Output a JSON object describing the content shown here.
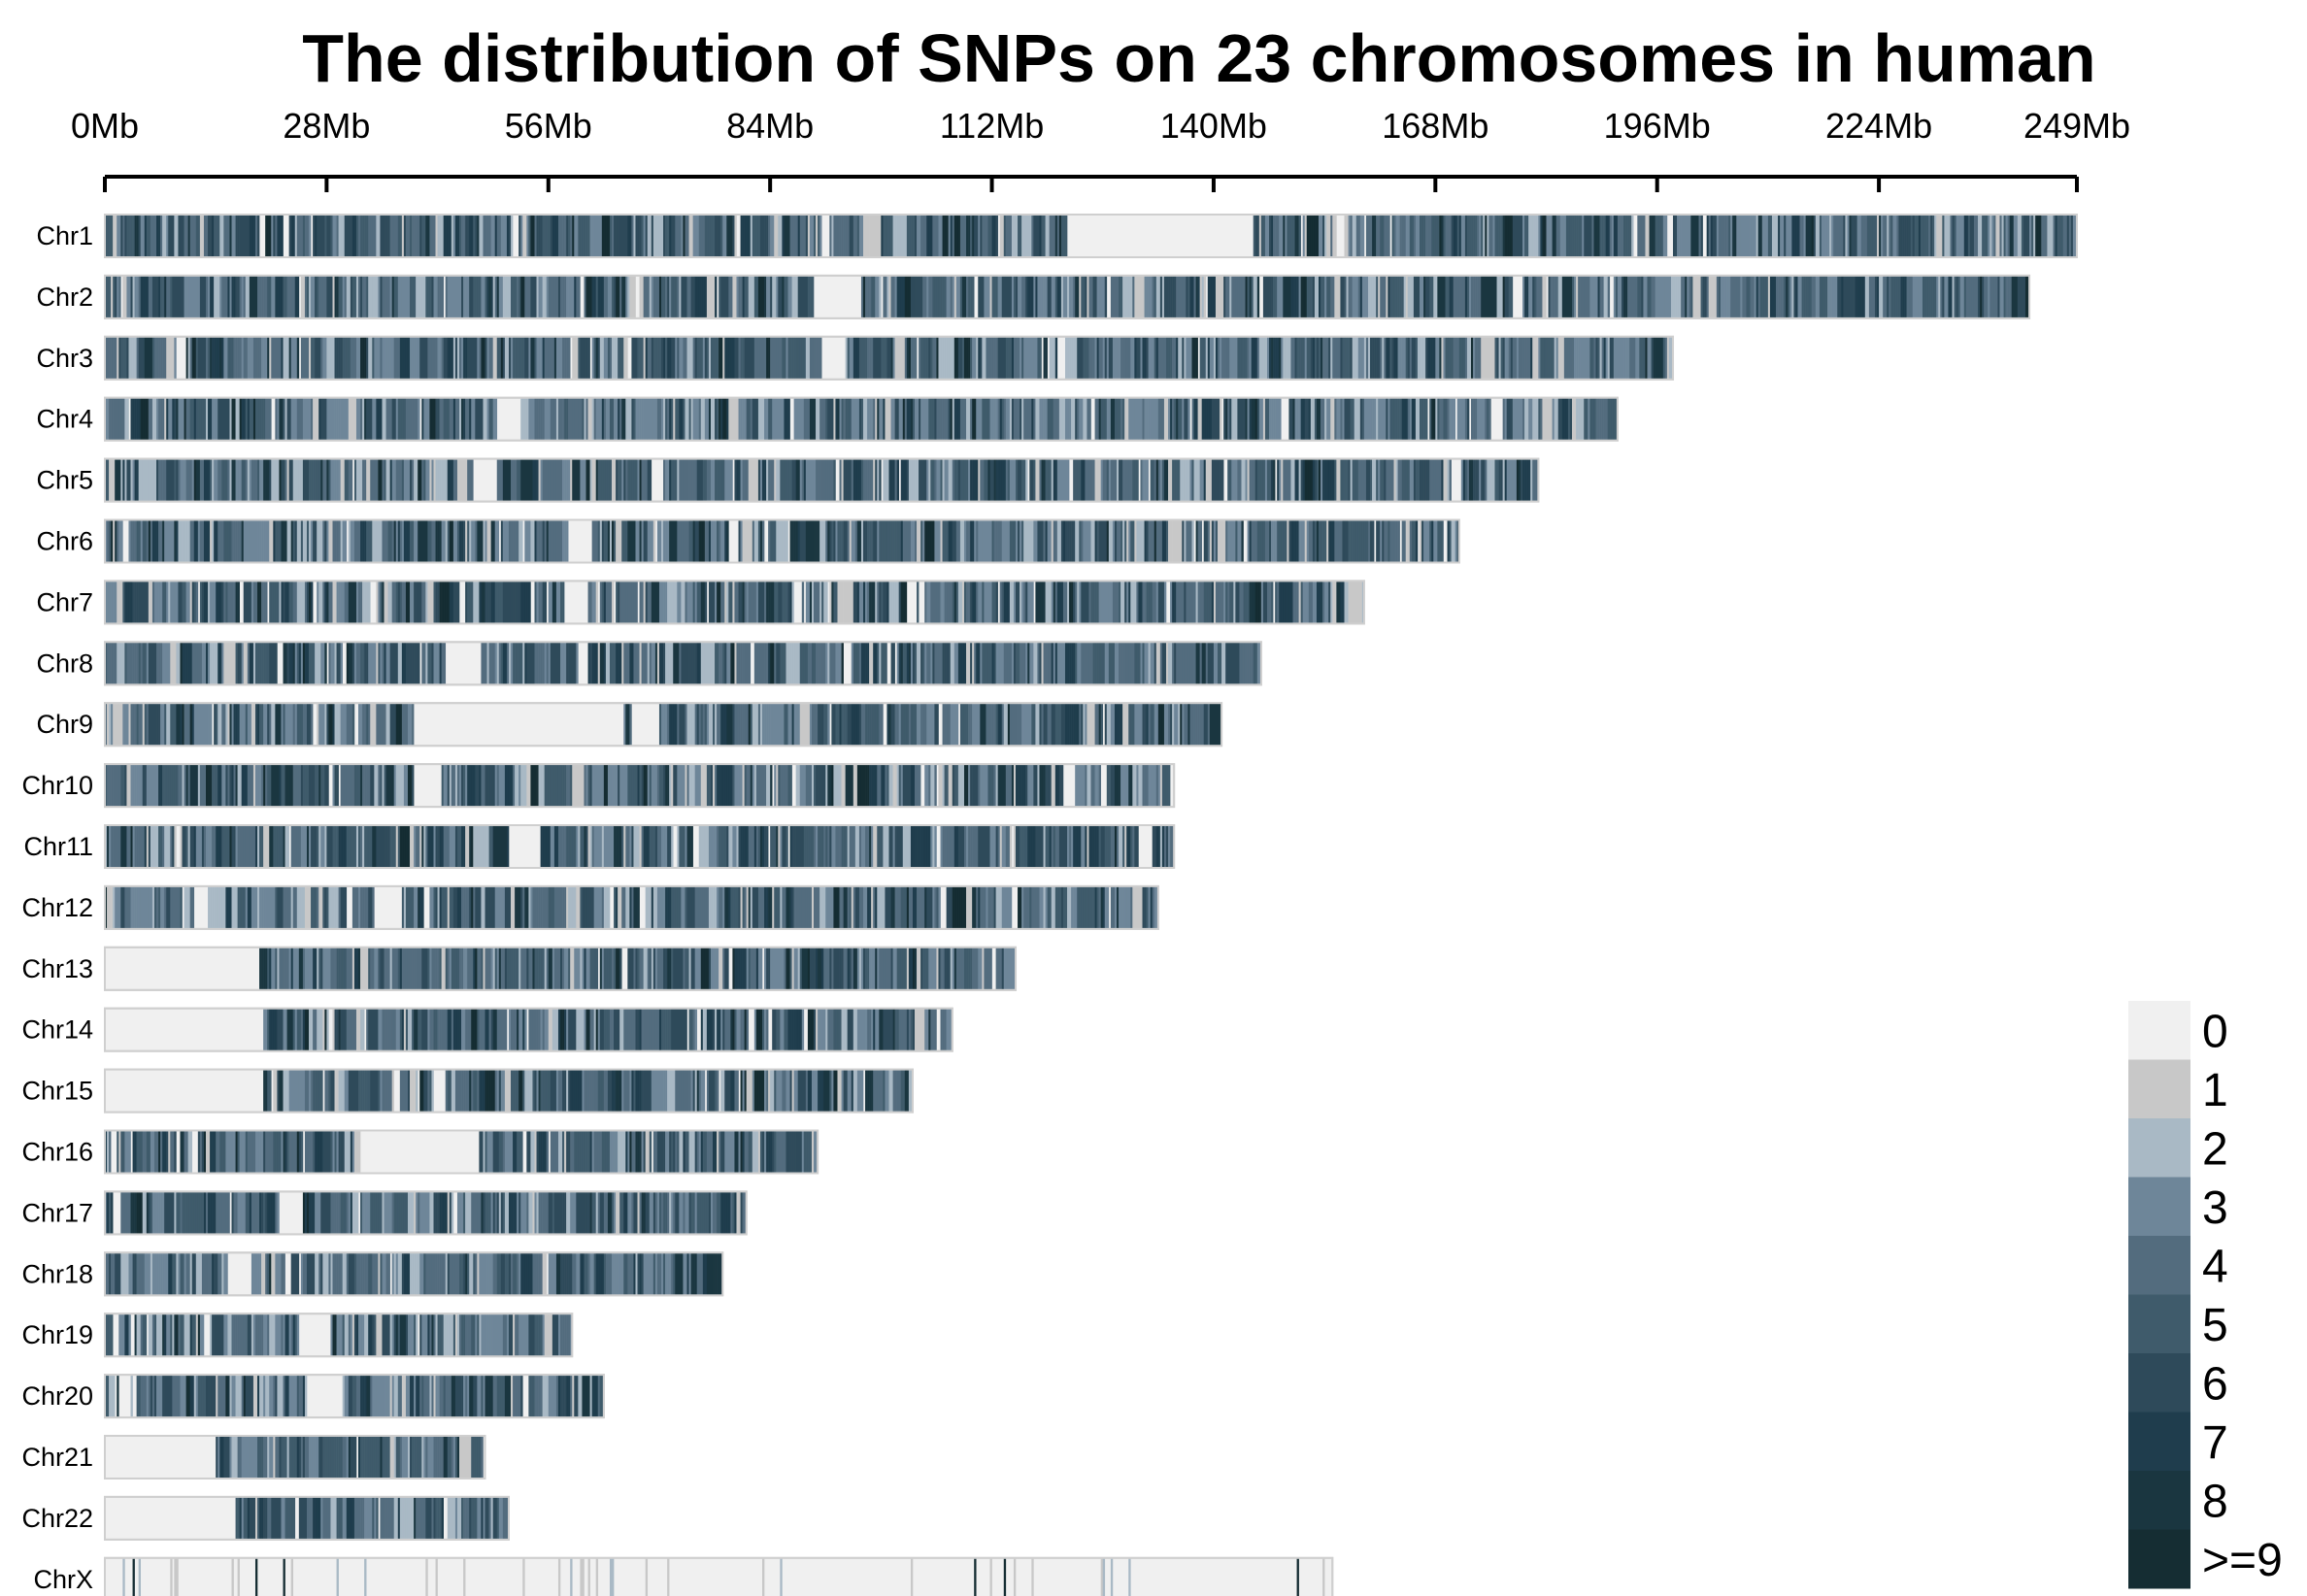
{
  "chart_data": {
    "type": "heatmap",
    "title": "The distribution of SNPs on 23 chromosomes in human",
    "x_ticks": [
      "0Mb",
      "28Mb",
      "56Mb",
      "84Mb",
      "112Mb",
      "140Mb",
      "168Mb",
      "196Mb",
      "224Mb",
      "249Mb"
    ],
    "x_tick_values": [
      0,
      28,
      56,
      84,
      112,
      140,
      168,
      196,
      224,
      249
    ],
    "xlim": [
      0,
      249
    ],
    "colors": [
      "#f0f0f0",
      "#c8c8c8",
      "#a9b9c5",
      "#6e8699",
      "#536c7e",
      "#3f5b6b",
      "#2e4a5a",
      "#1f3d4d",
      "#1a3640",
      "#152d33"
    ],
    "legend": {
      "labels": [
        "0",
        "1",
        "2",
        "3",
        "4",
        "5",
        "6",
        "7",
        "8",
        ">=9"
      ],
      "position": "bottom-right"
    },
    "chromosomes": [
      {
        "name": "Chr1",
        "length": 249,
        "gaps": [
          [
            121.5,
            145.0
          ]
        ]
      },
      {
        "name": "Chr2",
        "length": 243,
        "gaps": [
          [
            89.5,
            95.5
          ]
        ]
      },
      {
        "name": "Chr3",
        "length": 198,
        "gaps": [
          [
            90.5,
            93.5
          ]
        ]
      },
      {
        "name": "Chr4",
        "length": 191,
        "gaps": [
          [
            49.5,
            52.5
          ]
        ]
      },
      {
        "name": "Chr5",
        "length": 181,
        "gaps": [
          [
            46.5,
            49.5
          ],
          [
            69.0,
            70.5
          ]
        ]
      },
      {
        "name": "Chr6",
        "length": 171,
        "gaps": [
          [
            58.5,
            61.5
          ]
        ]
      },
      {
        "name": "Chr7",
        "length": 159,
        "gaps": [
          [
            58.0,
            61.0
          ]
        ]
      },
      {
        "name": "Chr8",
        "length": 146,
        "gaps": [
          [
            43.0,
            47.5
          ]
        ]
      },
      {
        "name": "Chr9",
        "length": 141,
        "gaps": [
          [
            39.0,
            65.5
          ],
          [
            66.5,
            70.0
          ]
        ]
      },
      {
        "name": "Chr10",
        "length": 135,
        "gaps": [
          [
            39.0,
            42.5
          ]
        ]
      },
      {
        "name": "Chr11",
        "length": 135,
        "gaps": [
          [
            51.0,
            55.0
          ]
        ]
      },
      {
        "name": "Chr12",
        "length": 133,
        "gaps": [
          [
            34.5,
            37.5
          ]
        ]
      },
      {
        "name": "Chr13",
        "length": 115,
        "gaps": [
          [
            0,
            19.0
          ]
        ]
      },
      {
        "name": "Chr14",
        "length": 107,
        "gaps": [
          [
            0,
            20.0
          ]
        ]
      },
      {
        "name": "Chr15",
        "length": 102,
        "gaps": [
          [
            0,
            20.0
          ]
        ]
      },
      {
        "name": "Chr16",
        "length": 90,
        "gaps": [
          [
            34.0,
            46.5
          ]
        ]
      },
      {
        "name": "Chr17",
        "length": 81,
        "gaps": [
          [
            22.0,
            25.0
          ]
        ]
      },
      {
        "name": "Chr18",
        "length": 78,
        "gaps": [
          [
            15.5,
            18.5
          ]
        ]
      },
      {
        "name": "Chr19",
        "length": 59,
        "gaps": [
          [
            24.5,
            28.5
          ]
        ]
      },
      {
        "name": "Chr20",
        "length": 63,
        "gaps": [
          [
            25.5,
            30.0
          ]
        ]
      },
      {
        "name": "Chr21",
        "length": 48,
        "gaps": [
          [
            0,
            14.0
          ]
        ]
      },
      {
        "name": "Chr22",
        "length": 51,
        "gaps": [
          [
            0,
            16.5
          ]
        ]
      },
      {
        "name": "ChrX",
        "length": 155,
        "gaps": [],
        "sparse": true
      }
    ]
  }
}
